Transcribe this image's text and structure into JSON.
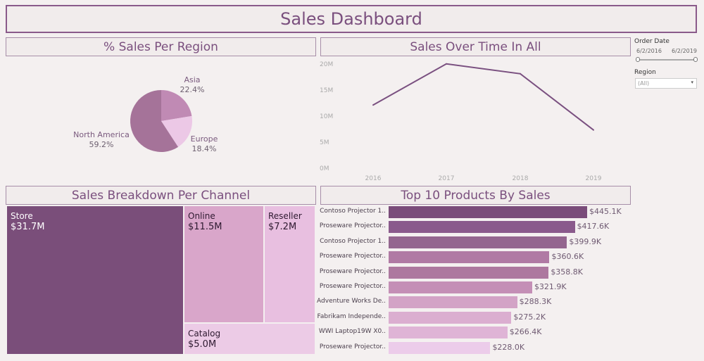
{
  "title": "Sales Dashboard",
  "sections": {
    "region": "% Sales Per Region",
    "time": "Sales Over Time In All",
    "channel": "Sales Breakdown Per Channel",
    "products": "Top 10 Products By Sales"
  },
  "filters": {
    "order_date_label": "Order Date",
    "date_start": "6/2/2016",
    "date_end": "6/2/2019",
    "region_label": "Region",
    "region_value": "(All)"
  },
  "pie": {
    "slices": [
      {
        "name": "Asia",
        "pct": "22.4%",
        "value": 22.4,
        "color": "#c08ab4"
      },
      {
        "name": "Europe",
        "pct": "18.4%",
        "value": 18.4,
        "color": "#ecc8e6"
      },
      {
        "name": "North America",
        "pct": "59.2%",
        "value": 59.2,
        "color": "#a57399"
      }
    ]
  },
  "chart_data": {
    "type": "line",
    "x": [
      "2016",
      "2017",
      "2018",
      "2019"
    ],
    "y": [
      12.0,
      19.9,
      18.0,
      7.2
    ],
    "y_ticks": [
      "0M",
      "5M",
      "10M",
      "15M",
      "20M"
    ],
    "ylim": [
      0,
      20
    ],
    "color": "#7a5080"
  },
  "channels": [
    {
      "name": "Store",
      "value": "$31.7M",
      "color": "#7a4e7a"
    },
    {
      "name": "Online",
      "value": "$11.5M",
      "color": "#d9a6ca"
    },
    {
      "name": "Reseller",
      "value": "$7.2M",
      "color": "#e8bfe0"
    },
    {
      "name": "Catalog",
      "value": "$5.0M",
      "color": "#eccbe6"
    }
  ],
  "products": [
    {
      "name": "Contoso Projector 1..",
      "label": "$445.1K",
      "value": 445.1,
      "color": "#7a4c7a"
    },
    {
      "name": "Proseware Projector..",
      "label": "$417.6K",
      "value": 417.6,
      "color": "#8a5a8c"
    },
    {
      "name": "Contoso Projector 1..",
      "label": "$399.9K",
      "value": 399.9,
      "color": "#94668f"
    },
    {
      "name": "Proseware Projector..",
      "label": "$360.6K",
      "value": 360.6,
      "color": "#b07aa4"
    },
    {
      "name": "Proseware Projector..",
      "label": "$358.8K",
      "value": 358.8,
      "color": "#ad789f"
    },
    {
      "name": "Proseware Projector..",
      "label": "$321.9K",
      "value": 321.9,
      "color": "#c48fb6"
    },
    {
      "name": "Adventure Works De..",
      "label": "$288.3K",
      "value": 288.3,
      "color": "#d3a3c6"
    },
    {
      "name": "Fabrikam Independe..",
      "label": "$275.2K",
      "value": 275.2,
      "color": "#dbaed0"
    },
    {
      "name": "WWI Laptop19W X0..",
      "label": "$266.4K",
      "value": 266.4,
      "color": "#dfb4d6"
    },
    {
      "name": "Proseware Projector..",
      "label": "$228.0K",
      "value": 228.0,
      "color": "#ecccea"
    }
  ]
}
